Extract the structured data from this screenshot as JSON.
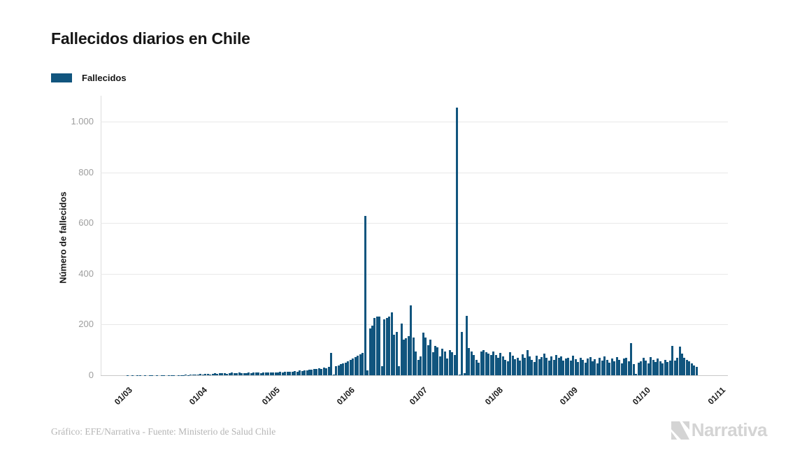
{
  "title": "Fallecidos diarios en Chile",
  "legend": {
    "label": "Fallecidos",
    "color": "#11557e"
  },
  "footer": {
    "credit": "Gráfico: EFE/Narrativa - Fuente: Ministerio de Salud Chile",
    "logo_text": "Narrativa"
  },
  "chart_data": {
    "type": "bar",
    "title": "Fallecidos diarios en Chile",
    "xlabel": "",
    "ylabel": "Número de fallecidos",
    "ylim": [
      0,
      1095
    ],
    "grid": "horizontal",
    "legend_position": "top-left",
    "bar_color": "#11557e",
    "y_ticks": {
      "values": [
        0,
        200,
        400,
        600,
        800,
        1000
      ],
      "labels": [
        "0",
        "200",
        "400",
        "600",
        "800",
        "1.000"
      ]
    },
    "x_ticks": {
      "labels": [
        "01/03",
        "01/04",
        "01/05",
        "01/06",
        "01/07",
        "01/08",
        "01/09",
        "01/10",
        "01/11"
      ],
      "day_offsets": [
        0,
        31,
        61,
        92,
        122,
        153,
        184,
        214,
        245
      ]
    },
    "series_name": "Fallecidos",
    "start_date": "2020-03-03",
    "start_day_offset": 2,
    "values": [
      1,
      0,
      1,
      0,
      1,
      1,
      0,
      1,
      0,
      1,
      1,
      0,
      1,
      0,
      1,
      1,
      0,
      1,
      1,
      1,
      0,
      1,
      1,
      1,
      2,
      1,
      2,
      4,
      4,
      3,
      5,
      4,
      6,
      5,
      4,
      6,
      7,
      5,
      8,
      9,
      7,
      6,
      8,
      10,
      9,
      8,
      10,
      9,
      8,
      9,
      11,
      9,
      10,
      12,
      10,
      9,
      11,
      10,
      12,
      10,
      12,
      11,
      10,
      13,
      12,
      14,
      13,
      15,
      14,
      16,
      15,
      18,
      17,
      20,
      19,
      22,
      21,
      25,
      24,
      28,
      26,
      30,
      29,
      32,
      88,
      3,
      35,
      39,
      43,
      46,
      49,
      54,
      60,
      66,
      71,
      77,
      82,
      88,
      628,
      20,
      185,
      195,
      226,
      231,
      232,
      35,
      222,
      226,
      232,
      248,
      160,
      170,
      36,
      205,
      140,
      145,
      155,
      276,
      150,
      95,
      60,
      75,
      168,
      150,
      120,
      140,
      90,
      115,
      110,
      75,
      105,
      95,
      65,
      98,
      92,
      80,
      1057,
      3,
      171,
      8,
      235,
      108,
      95,
      80,
      60,
      50,
      95,
      100,
      90,
      85,
      80,
      95,
      80,
      70,
      88,
      75,
      62,
      55,
      92,
      78,
      64,
      70,
      58,
      82,
      68,
      98,
      74,
      60,
      53,
      78,
      64,
      71,
      86,
      69,
      57,
      75,
      62,
      81,
      68,
      74,
      58,
      65,
      70,
      58,
      76,
      64,
      52,
      70,
      60,
      50,
      66,
      72,
      55,
      63,
      48,
      68,
      58,
      74,
      62,
      50,
      65,
      55,
      72,
      60,
      47,
      65,
      70,
      55,
      128,
      45,
      5,
      50,
      55,
      68,
      58,
      48,
      72,
      60,
      52,
      66,
      56,
      46,
      62,
      52,
      58,
      115,
      58,
      68,
      112,
      85,
      70,
      62,
      55,
      48,
      40,
      34
    ]
  }
}
